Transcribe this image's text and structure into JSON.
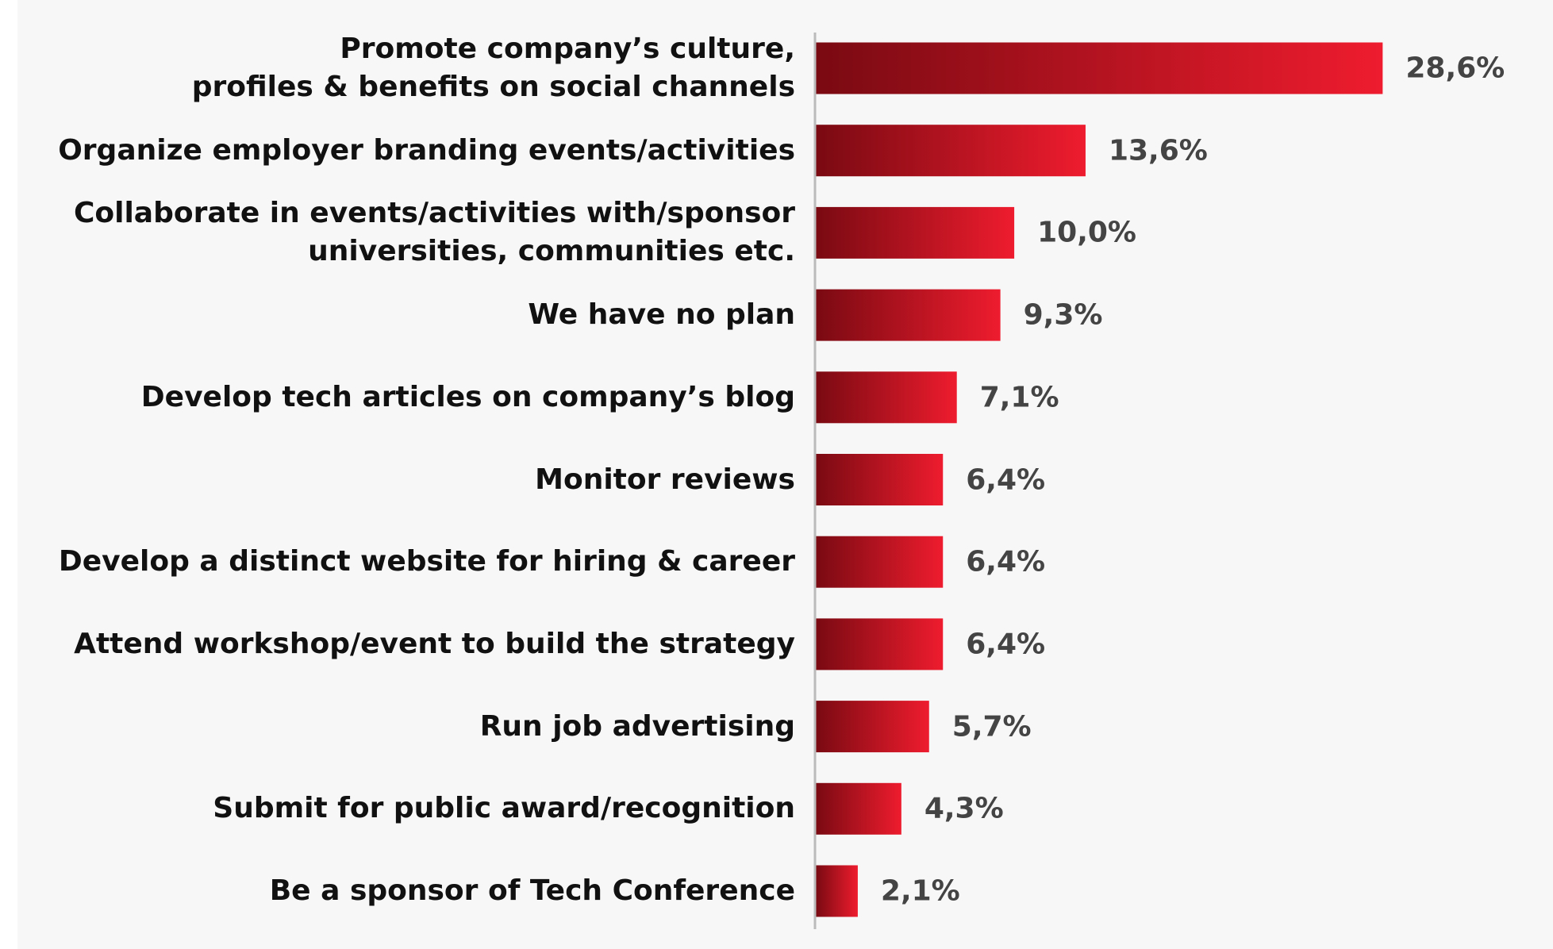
{
  "chart_data": {
    "type": "bar",
    "orientation": "horizontal",
    "categories": [
      "Promote company’s culture,\nprofiles & benefits on social channels",
      "Organize employer branding events/activities",
      "Collaborate in events/activities with/sponsor\nuniversities, communities etc.",
      "We have no plan",
      "Develop tech articles on company’s blog",
      "Monitor reviews",
      "Develop a distinct website for hiring & career",
      "Attend workshop/event to build the strategy",
      "Run job advertising",
      "Submit for public award/recognition",
      "Be a sponsor of Tech Conference"
    ],
    "values": [
      28.6,
      13.6,
      10.0,
      9.3,
      7.1,
      6.4,
      6.4,
      6.4,
      5.7,
      4.3,
      2.1
    ],
    "value_labels": [
      "28,6%",
      "13,6%",
      "10,0%",
      "9,3%",
      "7,1%",
      "6,4%",
      "6,4%",
      "6,4%",
      "5,7%",
      "4,3%",
      "2,1%"
    ],
    "color": [
      "#7a0a12",
      "#ee1c2e"
    ]
  }
}
